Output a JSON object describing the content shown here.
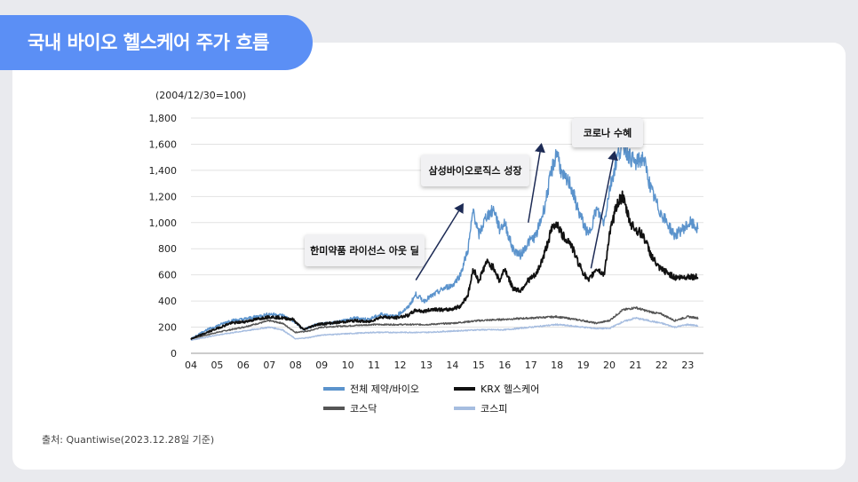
{
  "page_title": "국내 바이오 헬스케어 주가 흐름",
  "source_note": "출처: Quantiwise(2023.12.28일 기준)",
  "chart_data": {
    "type": "line",
    "title": "국내 바이오 헬스케어 주가 흐름",
    "ylabel": "(2004/12/30=100)",
    "ylim": [
      0,
      1800
    ],
    "yticks": [
      0,
      200,
      400,
      600,
      800,
      1000,
      1200,
      1400,
      1600,
      1800
    ],
    "ytick_labels": [
      "0",
      "200",
      "400",
      "600",
      "800",
      "1,000",
      "1,200",
      "1,400",
      "1,600",
      "1,800"
    ],
    "xlim": [
      2004,
      2023.6
    ],
    "xticks": [
      2004,
      2005,
      2006,
      2007,
      2008,
      2009,
      2010,
      2011,
      2012,
      2013,
      2014,
      2015,
      2016,
      2017,
      2018,
      2019,
      2020,
      2021,
      2022,
      2023
    ],
    "xtick_labels": [
      "04",
      "05",
      "06",
      "07",
      "08",
      "09",
      "10",
      "11",
      "12",
      "13",
      "14",
      "15",
      "16",
      "17",
      "18",
      "19",
      "20",
      "21",
      "22",
      "23"
    ],
    "grid": "horizontal",
    "legend_position": "bottom",
    "series": [
      {
        "name": "전체 제약/바이오",
        "color": "#5b93cc",
        "x": [
          2004.0,
          2004.5,
          2005.0,
          2005.5,
          2006.0,
          2006.5,
          2007.0,
          2007.5,
          2007.9,
          2008.3,
          2008.8,
          2009.3,
          2009.8,
          2010.3,
          2010.8,
          2011.3,
          2011.8,
          2012.3,
          2012.6,
          2012.9,
          2013.3,
          2013.7,
          2014.0,
          2014.3,
          2014.6,
          2014.8,
          2015.0,
          2015.3,
          2015.6,
          2015.8,
          2016.0,
          2016.3,
          2016.6,
          2016.9,
          2017.2,
          2017.5,
          2017.8,
          2018.0,
          2018.2,
          2018.5,
          2018.8,
          2019.0,
          2019.2,
          2019.5,
          2019.8,
          2020.0,
          2020.3,
          2020.5,
          2020.8,
          2021.0,
          2021.3,
          2021.6,
          2021.9,
          2022.2,
          2022.5,
          2022.8,
          2023.1,
          2023.4
        ],
        "values": [
          110,
          170,
          210,
          250,
          260,
          280,
          300,
          290,
          250,
          180,
          220,
          230,
          250,
          270,
          260,
          300,
          280,
          350,
          450,
          400,
          450,
          500,
          520,
          600,
          800,
          1100,
          900,
          1050,
          1100,
          950,
          1000,
          800,
          750,
          850,
          900,
          1100,
          1400,
          1550,
          1350,
          1300,
          1100,
          1000,
          900,
          1100,
          1000,
          1250,
          1500,
          1600,
          1500,
          1450,
          1500,
          1250,
          1100,
          1000,
          900,
          950,
          1000,
          950
        ]
      },
      {
        "name": "KRX 헬스케어",
        "color": "#111111",
        "x": [
          2004.0,
          2004.5,
          2005.0,
          2005.5,
          2006.0,
          2006.5,
          2007.0,
          2007.5,
          2007.9,
          2008.3,
          2008.8,
          2009.3,
          2009.8,
          2010.3,
          2010.8,
          2011.3,
          2011.8,
          2012.3,
          2012.6,
          2012.9,
          2013.3,
          2013.7,
          2014.0,
          2014.3,
          2014.6,
          2014.8,
          2015.0,
          2015.3,
          2015.6,
          2015.8,
          2016.0,
          2016.3,
          2016.6,
          2016.9,
          2017.2,
          2017.5,
          2017.8,
          2018.0,
          2018.2,
          2018.5,
          2018.8,
          2019.0,
          2019.2,
          2019.5,
          2019.8,
          2020.0,
          2020.3,
          2020.5,
          2020.8,
          2021.0,
          2021.3,
          2021.6,
          2021.9,
          2022.2,
          2022.5,
          2022.8,
          2023.1,
          2023.4
        ],
        "values": [
          110,
          150,
          190,
          230,
          240,
          260,
          280,
          270,
          260,
          180,
          220,
          230,
          240,
          250,
          240,
          280,
          270,
          290,
          330,
          320,
          340,
          330,
          340,
          360,
          450,
          650,
          550,
          700,
          650,
          550,
          650,
          500,
          480,
          560,
          600,
          750,
          950,
          1000,
          900,
          850,
          700,
          620,
          550,
          650,
          600,
          900,
          1150,
          1200,
          1000,
          950,
          900,
          750,
          650,
          620,
          580,
          580,
          590,
          580
        ]
      },
      {
        "name": "코스닥",
        "color": "#555555",
        "x": [
          2004.0,
          2005.0,
          2006.0,
          2007.0,
          2007.5,
          2008.0,
          2008.5,
          2009.0,
          2010.0,
          2011.0,
          2012.0,
          2013.0,
          2014.0,
          2015.0,
          2016.0,
          2017.0,
          2018.0,
          2019.0,
          2019.5,
          2020.0,
          2020.5,
          2021.0,
          2021.5,
          2022.0,
          2022.5,
          2023.0,
          2023.4
        ],
        "values": [
          110,
          160,
          200,
          250,
          230,
          160,
          170,
          200,
          210,
          220,
          220,
          220,
          230,
          250,
          260,
          270,
          280,
          250,
          230,
          250,
          330,
          350,
          320,
          300,
          250,
          280,
          270
        ]
      },
      {
        "name": "코스피",
        "color": "#a6bde0",
        "x": [
          2004.0,
          2005.0,
          2006.0,
          2007.0,
          2007.5,
          2008.0,
          2008.5,
          2009.0,
          2010.0,
          2011.0,
          2012.0,
          2013.0,
          2014.0,
          2015.0,
          2016.0,
          2017.0,
          2018.0,
          2019.0,
          2019.5,
          2020.0,
          2020.5,
          2021.0,
          2021.5,
          2022.0,
          2022.5,
          2023.0,
          2023.4
        ],
        "values": [
          100,
          140,
          170,
          200,
          180,
          110,
          120,
          140,
          150,
          160,
          160,
          160,
          170,
          180,
          180,
          200,
          220,
          200,
          190,
          190,
          240,
          270,
          250,
          230,
          200,
          220,
          210
        ]
      }
    ],
    "annotations": [
      {
        "text": "한미약품 라이선스 아웃 딜",
        "arrow_from": [
          2012.6,
          560
        ],
        "arrow_to": [
          2014.4,
          1140
        ]
      },
      {
        "text": "삼성바이오로직스 성장",
        "arrow_from": [
          2016.9,
          1000
        ],
        "arrow_to": [
          2017.4,
          1600
        ]
      },
      {
        "text": "코로나 수혜",
        "arrow_from": [
          2019.3,
          650
        ],
        "arrow_to": [
          2020.2,
          1540
        ]
      }
    ]
  }
}
